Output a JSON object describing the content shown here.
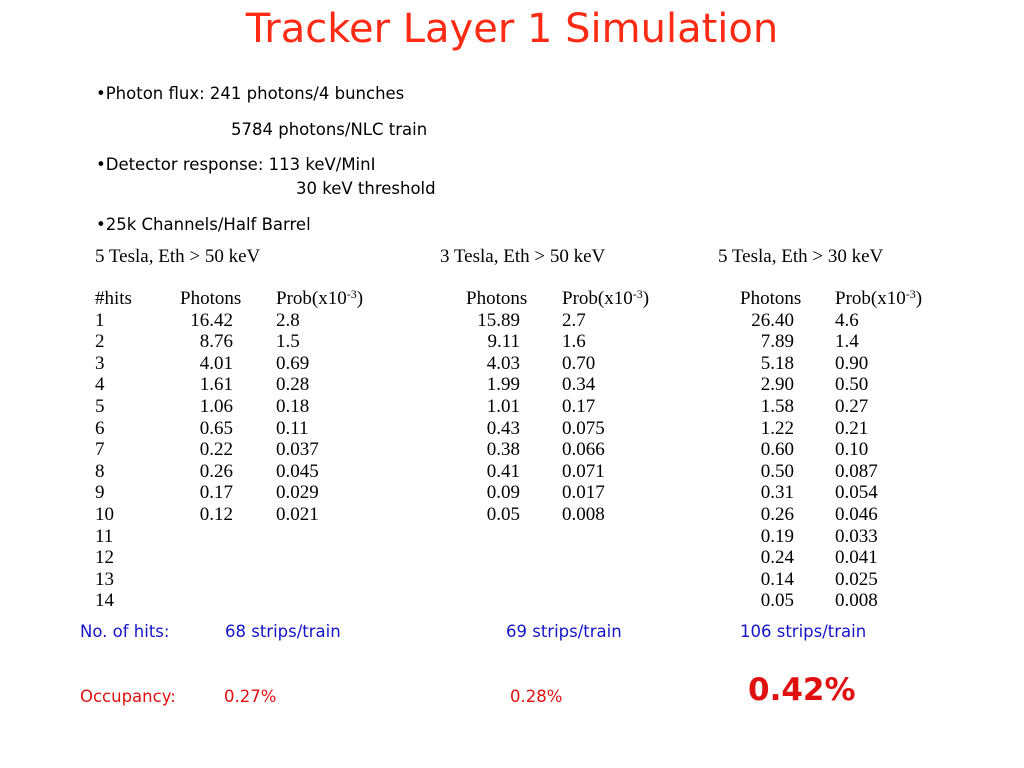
{
  "title": "Tracker Layer 1 Simulation",
  "bullets": {
    "flux_label": "•Photon flux:  241 photons/4 bunches",
    "flux_line2": "5784 photons/NLC train",
    "detector_label": "•Detector response:  113 keV/MinI",
    "detector_line2": "30 keV threshold",
    "channels": "•25k Channels/Half Barrel"
  },
  "tables": {
    "t1": {
      "heading": "5 Tesla, Eth > 50 keV",
      "hits_header": "#hits",
      "photons_header": "Photons",
      "prob_header": "Prob(x10",
      "prob_exp": "-3",
      "prob_close": ")",
      "hits": [
        "1",
        "2",
        "3",
        "4",
        "5",
        "6",
        "7",
        "8",
        "9",
        "10",
        "11",
        "12",
        "13",
        "14"
      ],
      "photons": [
        "16.42",
        "8.76",
        "4.01",
        "1.61",
        "1.06",
        "0.65",
        "0.22",
        "0.26",
        "0.17",
        "0.12"
      ],
      "prob": [
        "2.8",
        "1.5",
        "0.69",
        "0.28",
        "0.18",
        "0.11",
        "0.037",
        "0.045",
        "0.029",
        "0.021"
      ]
    },
    "t2": {
      "heading": "3 Tesla, Eth > 50 keV",
      "photons_header": "Photons",
      "prob_header": "Prob(x10",
      "prob_exp": "-3",
      "prob_close": ")",
      "photons": [
        "15.89",
        "9.11",
        "4.03",
        "1.99",
        "1.01",
        "0.43",
        "0.38",
        "0.41",
        "0.09",
        "0.05"
      ],
      "prob": [
        "2.7",
        "1.6",
        "0.70",
        "0.34",
        "0.17",
        "0.075",
        "0.066",
        "0.071",
        "0.017",
        "0.008"
      ]
    },
    "t3": {
      "heading": "5 Tesla, Eth > 30 keV",
      "photons_header": "Photons",
      "prob_header": "Prob(x10",
      "prob_exp": "-3",
      "prob_close": ")",
      "photons": [
        "26.40",
        "7.89",
        "5.18",
        "2.90",
        "1.58",
        "1.22",
        "0.60",
        "0.50",
        "0.31",
        "0.26",
        "0.19",
        "0.24",
        "0.14",
        "0.05"
      ],
      "prob": [
        "4.6",
        "1.4",
        "0.90",
        "0.50",
        "0.27",
        "0.21",
        "0.10",
        "0.087",
        "0.054",
        "0.046",
        "0.033",
        "0.041",
        "0.025",
        "0.008"
      ]
    }
  },
  "summary": {
    "hits_label": "No. of hits:",
    "hits_1": "68 strips/train",
    "hits_2": "69 strips/train",
    "hits_3": "106 strips/train",
    "occ_label": "Occupancy:",
    "occ_1": "0.27%",
    "occ_2": "0.28%",
    "occ_3": "0.42%"
  },
  "colors": {
    "title": "#ff2a14",
    "summary_blue": "#1414c8",
    "summary_red": "#e01010"
  }
}
